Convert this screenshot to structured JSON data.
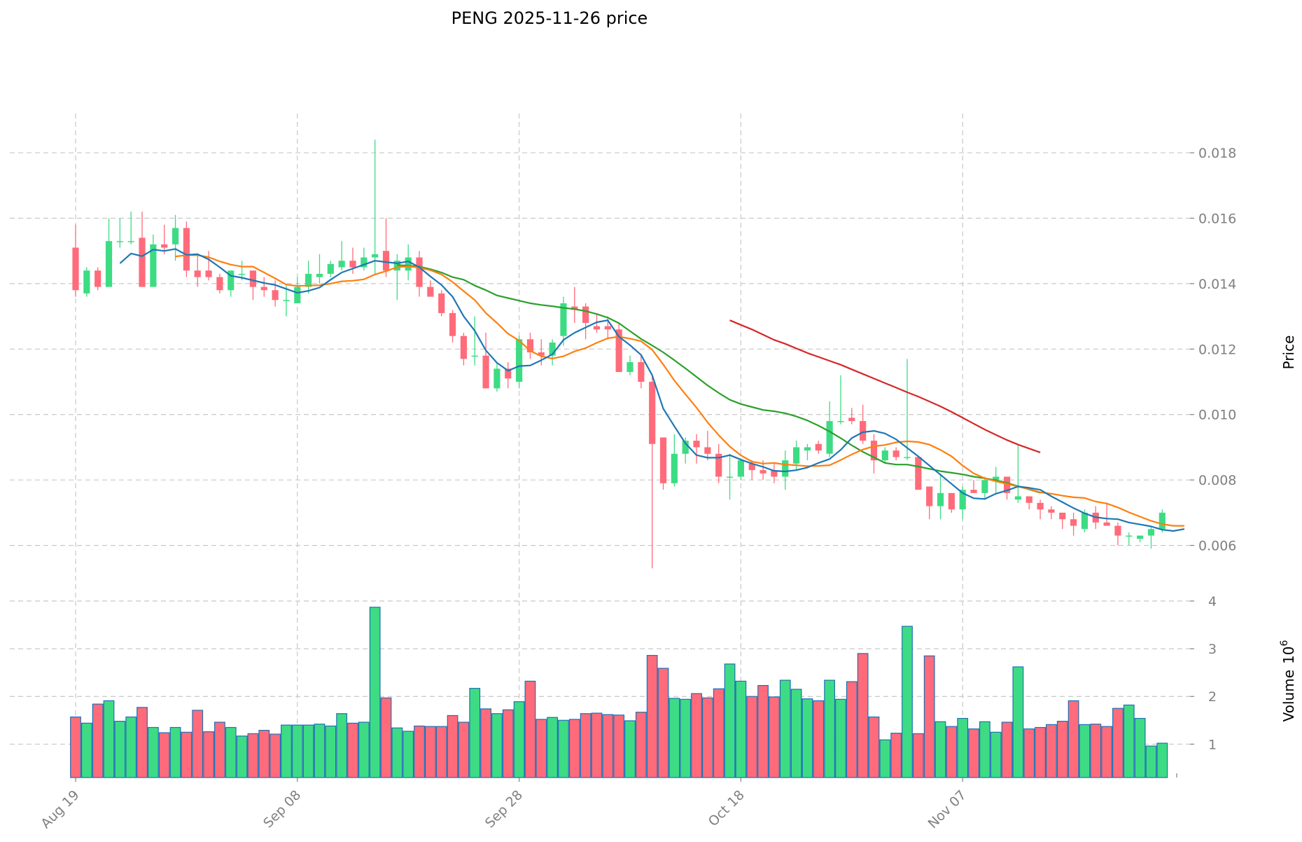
{
  "chart_data": {
    "type": "candlestick",
    "title": "PENG  2025-11-26  price",
    "price_axis": {
      "label": "Price",
      "ylim": [
        0.0043,
        0.0192
      ],
      "ticks": [
        0.006,
        0.008,
        0.01,
        0.012,
        0.014,
        0.016,
        0.018
      ],
      "tick_labels": [
        "0.006",
        "0.008",
        "0.010",
        "0.012",
        "0.014",
        "0.016",
        "0.018"
      ]
    },
    "volume_axis": {
      "label": "Volume",
      "exponent_label": "10",
      "exponent": "6",
      "ylim": [
        0.3,
        4.0
      ],
      "ticks": [
        1,
        2,
        3,
        4
      ],
      "tick_labels": [
        "1",
        "2",
        "3",
        "4"
      ]
    },
    "x_ticks": [
      {
        "index": 0,
        "label": "Aug 19"
      },
      {
        "index": 20,
        "label": "Sep 08"
      },
      {
        "index": 40,
        "label": "Sep 28"
      },
      {
        "index": 60,
        "label": "Oct 18"
      },
      {
        "index": 80,
        "label": "Nov 07"
      }
    ],
    "colors": {
      "up": "#3ddc84",
      "down": "#ff6b7a",
      "volume_edge": "#1f6fb4",
      "ma_short": "#1f77b4",
      "ma_mid": "#ff7f0e",
      "ma_long": "#2ca02c",
      "ma_longest": "#d62728"
    },
    "candles": [
      [
        0.0151,
        0.0158,
        0.0136,
        0.0138
      ],
      [
        0.0137,
        0.0145,
        0.0136,
        0.0144
      ],
      [
        0.0144,
        0.0145,
        0.0138,
        0.0139
      ],
      [
        0.0139,
        0.016,
        0.0139,
        0.0153
      ],
      [
        0.0153,
        0.016,
        0.0151,
        0.0153
      ],
      [
        0.0153,
        0.0162,
        0.0152,
        0.0153
      ],
      [
        0.0154,
        0.0162,
        0.0139,
        0.0139
      ],
      [
        0.0139,
        0.0155,
        0.0139,
        0.0152
      ],
      [
        0.0152,
        0.0158,
        0.0149,
        0.0151
      ],
      [
        0.0152,
        0.0161,
        0.0147,
        0.0157
      ],
      [
        0.0157,
        0.0159,
        0.0142,
        0.0144
      ],
      [
        0.0144,
        0.0149,
        0.0139,
        0.0142
      ],
      [
        0.0144,
        0.015,
        0.0141,
        0.0142
      ],
      [
        0.0142,
        0.0143,
        0.0137,
        0.0138
      ],
      [
        0.0138,
        0.0144,
        0.0136,
        0.0144
      ],
      [
        0.0143,
        0.0147,
        0.0141,
        0.0143
      ],
      [
        0.0144,
        0.0144,
        0.0135,
        0.0139
      ],
      [
        0.0139,
        0.0142,
        0.0136,
        0.0138
      ],
      [
        0.0138,
        0.0141,
        0.0133,
        0.0135
      ],
      [
        0.0135,
        0.014,
        0.013,
        0.0135
      ],
      [
        0.0134,
        0.0142,
        0.0134,
        0.0139
      ],
      [
        0.0139,
        0.0147,
        0.0137,
        0.0143
      ],
      [
        0.0142,
        0.0149,
        0.014,
        0.0143
      ],
      [
        0.0143,
        0.0147,
        0.0142,
        0.0146
      ],
      [
        0.0145,
        0.0153,
        0.0144,
        0.0147
      ],
      [
        0.0147,
        0.0151,
        0.0143,
        0.0145
      ],
      [
        0.0145,
        0.0151,
        0.0144,
        0.0148
      ],
      [
        0.0148,
        0.0184,
        0.0143,
        0.0149
      ],
      [
        0.015,
        0.016,
        0.0142,
        0.0144
      ],
      [
        0.0144,
        0.0149,
        0.0135,
        0.0147
      ],
      [
        0.0144,
        0.0152,
        0.0141,
        0.0148
      ],
      [
        0.0148,
        0.015,
        0.0136,
        0.0139
      ],
      [
        0.0139,
        0.0141,
        0.0136,
        0.0136
      ],
      [
        0.0137,
        0.0138,
        0.013,
        0.0131
      ],
      [
        0.0131,
        0.0132,
        0.0122,
        0.0124
      ],
      [
        0.0124,
        0.0125,
        0.0115,
        0.0117
      ],
      [
        0.0118,
        0.013,
        0.0115,
        0.0118
      ],
      [
        0.0118,
        0.0125,
        0.0108,
        0.0108
      ],
      [
        0.0108,
        0.0116,
        0.0107,
        0.0114
      ],
      [
        0.0114,
        0.0116,
        0.0108,
        0.0111
      ],
      [
        0.011,
        0.0124,
        0.0108,
        0.0123
      ],
      [
        0.0123,
        0.0125,
        0.0117,
        0.0119
      ],
      [
        0.0119,
        0.0123,
        0.0115,
        0.0118
      ],
      [
        0.0118,
        0.0123,
        0.0115,
        0.0122
      ],
      [
        0.0124,
        0.0136,
        0.0121,
        0.0134
      ],
      [
        0.0133,
        0.0139,
        0.0128,
        0.0132
      ],
      [
        0.0133,
        0.0134,
        0.0123,
        0.0128
      ],
      [
        0.0127,
        0.0131,
        0.0125,
        0.0126
      ],
      [
        0.0127,
        0.013,
        0.0123,
        0.0126
      ],
      [
        0.0126,
        0.0128,
        0.0113,
        0.0113
      ],
      [
        0.0113,
        0.0118,
        0.0112,
        0.0116
      ],
      [
        0.0116,
        0.0118,
        0.0108,
        0.011
      ],
      [
        0.011,
        0.0112,
        0.0053,
        0.0091
      ],
      [
        0.0093,
        0.0093,
        0.0077,
        0.0079
      ],
      [
        0.0079,
        0.0094,
        0.0078,
        0.0088
      ],
      [
        0.0088,
        0.0093,
        0.0085,
        0.0092
      ],
      [
        0.0092,
        0.0094,
        0.0085,
        0.009
      ],
      [
        0.009,
        0.0095,
        0.0086,
        0.0088
      ],
      [
        0.0088,
        0.0091,
        0.0079,
        0.0081
      ],
      [
        0.0081,
        0.0088,
        0.0074,
        0.0081
      ],
      [
        0.0081,
        0.0086,
        0.008,
        0.0086
      ],
      [
        0.0085,
        0.0086,
        0.008,
        0.0083
      ],
      [
        0.0083,
        0.0086,
        0.008,
        0.0082
      ],
      [
        0.0083,
        0.0085,
        0.0079,
        0.0081
      ],
      [
        0.0081,
        0.0089,
        0.0077,
        0.0086
      ],
      [
        0.0085,
        0.0092,
        0.0083,
        0.009
      ],
      [
        0.0089,
        0.0091,
        0.0086,
        0.009
      ],
      [
        0.0091,
        0.0092,
        0.0088,
        0.0089
      ],
      [
        0.0088,
        0.0104,
        0.0087,
        0.0098
      ],
      [
        0.0098,
        0.0112,
        0.0097,
        0.0098
      ],
      [
        0.0099,
        0.0102,
        0.0097,
        0.0098
      ],
      [
        0.0098,
        0.0103,
        0.0091,
        0.0092
      ],
      [
        0.0092,
        0.0094,
        0.0082,
        0.0086
      ],
      [
        0.0086,
        0.009,
        0.0085,
        0.0089
      ],
      [
        0.0089,
        0.009,
        0.0086,
        0.0087
      ],
      [
        0.0087,
        0.0117,
        0.0086,
        0.0087
      ],
      [
        0.0087,
        0.0087,
        0.0077,
        0.0077
      ],
      [
        0.0078,
        0.0078,
        0.0068,
        0.0072
      ],
      [
        0.0072,
        0.0082,
        0.0068,
        0.0076
      ],
      [
        0.0076,
        0.0076,
        0.007,
        0.0071
      ],
      [
        0.0071,
        0.0078,
        0.0068,
        0.0077
      ],
      [
        0.0077,
        0.008,
        0.0076,
        0.0076
      ],
      [
        0.0076,
        0.0081,
        0.0074,
        0.008
      ],
      [
        0.008,
        0.0084,
        0.0076,
        0.0081
      ],
      [
        0.0081,
        0.0081,
        0.0074,
        0.0076
      ],
      [
        0.0074,
        0.0091,
        0.0073,
        0.0075
      ],
      [
        0.0075,
        0.0075,
        0.0071,
        0.0073
      ],
      [
        0.0073,
        0.0074,
        0.0068,
        0.0071
      ],
      [
        0.0071,
        0.0072,
        0.0068,
        0.007
      ],
      [
        0.007,
        0.007,
        0.0065,
        0.0068
      ],
      [
        0.0068,
        0.007,
        0.0063,
        0.0066
      ],
      [
        0.0065,
        0.0071,
        0.0064,
        0.007
      ],
      [
        0.007,
        0.0072,
        0.0065,
        0.0067
      ],
      [
        0.0067,
        0.0073,
        0.0066,
        0.0066
      ],
      [
        0.0066,
        0.0067,
        0.006,
        0.0063
      ],
      [
        0.0063,
        0.0064,
        0.006,
        0.0063
      ],
      [
        0.0062,
        0.0063,
        0.0061,
        0.0063
      ],
      [
        0.0063,
        0.0066,
        0.0059,
        0.0065
      ],
      [
        0.0065,
        0.0071,
        0.0064,
        0.007
      ]
    ],
    "volume": [
      1.57,
      1.44,
      1.84,
      1.91,
      1.48,
      1.57,
      1.77,
      1.35,
      1.24,
      1.35,
      1.25,
      1.71,
      1.26,
      1.46,
      1.35,
      1.17,
      1.22,
      1.29,
      1.21,
      1.4,
      1.4,
      1.4,
      1.42,
      1.38,
      1.64,
      1.44,
      1.46,
      3.87,
      1.97,
      1.34,
      1.27,
      1.38,
      1.37,
      1.37,
      1.6,
      1.46,
      2.17,
      1.74,
      1.64,
      1.72,
      1.89,
      2.32,
      1.52,
      1.56,
      1.5,
      1.52,
      1.64,
      1.65,
      1.62,
      1.61,
      1.49,
      1.67,
      2.86,
      2.59,
      1.96,
      1.94,
      2.06,
      1.97,
      2.16,
      2.68,
      2.32,
      2.0,
      2.23,
      1.99,
      2.34,
      2.15,
      1.95,
      1.91,
      2.34,
      1.94,
      2.31,
      2.9,
      1.57,
      1.09,
      1.23,
      3.47,
      1.22,
      2.85,
      1.47,
      1.37,
      1.54,
      1.32,
      1.47,
      1.25,
      1.46,
      2.62,
      1.32,
      1.35,
      1.41,
      1.48,
      1.91,
      1.41,
      1.42,
      1.37,
      1.75,
      1.82,
      1.54,
      0.96,
      1.02
    ],
    "moving_averages": {
      "ma_short": {
        "start": 4,
        "values": [
          0.01462,
          0.01492,
          0.01484,
          0.01504,
          0.015,
          0.01506,
          0.01488,
          0.0149,
          0.01474,
          0.0145,
          0.01424,
          0.01418,
          0.0141,
          0.01402,
          0.01396,
          0.01384,
          0.01372,
          0.01378,
          0.01388,
          0.01412,
          0.01434,
          0.01446,
          0.01458,
          0.0147,
          0.01466,
          0.01462,
          0.01468,
          0.0145,
          0.01422,
          0.01396,
          0.0136,
          0.013,
          0.01256,
          0.01196,
          0.01158,
          0.01134,
          0.01148,
          0.0115,
          0.01166,
          0.01184,
          0.01228,
          0.0125,
          0.01266,
          0.01282,
          0.01288,
          0.01238,
          0.01212,
          0.01182,
          0.0112,
          0.01018,
          0.00964,
          0.00912,
          0.00876,
          0.00868,
          0.00868,
          0.00876,
          0.00862,
          0.0085,
          0.0084,
          0.00828,
          0.00826,
          0.0083,
          0.00838,
          0.00852,
          0.00864,
          0.00892,
          0.00928,
          0.00946,
          0.0095,
          0.00942,
          0.00924,
          0.00898,
          0.00872,
          0.00844,
          0.00816,
          0.00788,
          0.0076,
          0.00744,
          0.00742,
          0.00758,
          0.00768,
          0.0078,
          0.00776,
          0.0077,
          0.0075,
          0.00732,
          0.00714,
          0.00698,
          0.00686,
          0.00682,
          0.0068,
          0.0067,
          0.00664,
          0.00658,
          0.00648,
          0.00644,
          0.0065
        ]
      },
      "ma_mid": {
        "start": 9,
        "values": [
          0.01483,
          0.01487,
          0.01487,
          0.01481,
          0.01468,
          0.01458,
          0.01452,
          0.01452,
          0.01434,
          0.01416,
          0.01397,
          0.01393,
          0.01394,
          0.01395,
          0.014,
          0.01407,
          0.01409,
          0.01413,
          0.01428,
          0.01438,
          0.0145,
          0.01453,
          0.01449,
          0.01441,
          0.01428,
          0.01405,
          0.01377,
          0.0135,
          0.0131,
          0.0128,
          0.01247,
          0.01226,
          0.01195,
          0.01178,
          0.01171,
          0.01178,
          0.01193,
          0.01203,
          0.01219,
          0.01233,
          0.01238,
          0.01232,
          0.01224,
          0.01198,
          0.01153,
          0.01104,
          0.01062,
          0.01021,
          0.00976,
          0.00937,
          0.00902,
          0.00875,
          0.00856,
          0.0085,
          0.00852,
          0.00847,
          0.00845,
          0.00842,
          0.00843,
          0.00845,
          0.00861,
          0.00878,
          0.00893,
          0.00903,
          0.00907,
          0.00915,
          0.00918,
          0.00916,
          0.00908,
          0.00892,
          0.00872,
          0.00844,
          0.0082,
          0.00805,
          0.00796,
          0.00788,
          0.0078,
          0.00772,
          0.00762,
          0.00758,
          0.00752,
          0.00747,
          0.00745,
          0.00734,
          0.00728,
          0.00716,
          0.00701,
          0.00688,
          0.00675,
          0.00665,
          0.0066,
          0.0066
        ]
      },
      "ma_long": {
        "start": 29,
        "values": [
          0.01457,
          0.01455,
          0.01452,
          0.01444,
          0.01434,
          0.0142,
          0.01412,
          0.01394,
          0.0138,
          0.01364,
          0.01356,
          0.01348,
          0.0134,
          0.01335,
          0.01331,
          0.01326,
          0.01322,
          0.01316,
          0.01307,
          0.01296,
          0.01279,
          0.01255,
          0.01231,
          0.01211,
          0.0119,
          0.01166,
          0.01141,
          0.01115,
          0.01089,
          0.01066,
          0.01045,
          0.01032,
          0.01023,
          0.01014,
          0.0101,
          0.01004,
          0.00994,
          0.00982,
          0.00966,
          0.00948,
          0.00928,
          0.00906,
          0.00886,
          0.00869,
          0.00852,
          0.00847,
          0.00847,
          0.00841,
          0.00834,
          0.00827,
          0.00822,
          0.00817,
          0.0081,
          0.00805,
          0.00799,
          0.00791,
          0.00781,
          0.00771,
          0.00761
        ]
      },
      "ma_longest": {
        "start": 59,
        "values": [
          0.01288,
          0.01274,
          0.0126,
          0.01244,
          0.01228,
          0.01216,
          0.01202,
          0.01188,
          0.01176,
          0.01164,
          0.01152,
          0.01138,
          0.01124,
          0.0111,
          0.01096,
          0.01082,
          0.01068,
          0.01055,
          0.0104,
          0.01025,
          0.01008,
          0.0099,
          0.00972,
          0.00954,
          0.00938,
          0.00922,
          0.00908,
          0.00896,
          0.00884
        ]
      }
    }
  }
}
